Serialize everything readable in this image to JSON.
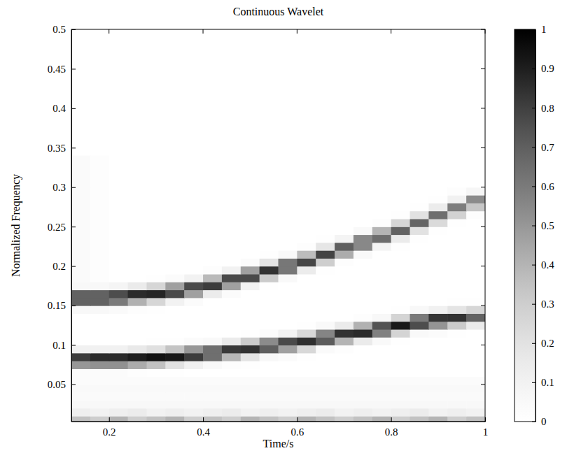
{
  "chart_data": {
    "type": "heatmap",
    "title": "Continuous Wavelet",
    "x_label": "Time/s",
    "y_label": "Normalized Frequency",
    "xlim": [
      0.12,
      1
    ],
    "ylim": [
      0.003,
      0.5
    ],
    "xticks": [
      0.2,
      0.4,
      0.6,
      0.8,
      1
    ],
    "yticks": [
      0.05,
      0.1,
      0.15,
      0.2,
      0.25,
      0.3,
      0.35,
      0.4,
      0.45,
      0.5
    ],
    "x": [
      0.14,
      0.18,
      0.22,
      0.26,
      0.3,
      0.34,
      0.38,
      0.42,
      0.46,
      0.5,
      0.54,
      0.58,
      0.62,
      0.66,
      0.7,
      0.74,
      0.78,
      0.82,
      0.86,
      0.9,
      0.94,
      0.98
    ],
    "y": [
      0.005,
      0.015,
      0.025,
      0.035,
      0.045,
      0.055,
      0.065,
      0.075,
      0.085,
      0.095,
      0.105,
      0.115,
      0.125,
      0.135,
      0.145,
      0.155,
      0.165,
      0.175,
      0.185,
      0.195,
      0.205,
      0.215,
      0.225,
      0.235,
      0.245,
      0.255,
      0.265,
      0.275,
      0.285,
      0.295,
      0.305,
      0.315,
      0.325,
      0.335
    ],
    "values": [
      [
        0.35,
        0.3,
        0.4,
        0.3,
        0.35,
        0.4,
        0.3,
        0.35,
        0.3,
        0.4,
        0.35,
        0.3,
        0.4,
        0.35,
        0.3,
        0.35,
        0.4,
        0.3,
        0.35,
        0.4,
        0.3,
        0.35
      ],
      [
        0.12,
        0.1,
        0.12,
        0.14,
        0.1,
        0.12,
        0.1,
        0.12,
        0.14,
        0.1,
        0.12,
        0.1,
        0.12,
        0.14,
        0.1,
        0.12,
        0.1,
        0.12,
        0.14,
        0.1,
        0.12,
        0.1
      ],
      [
        0.06,
        0.06,
        0.06,
        0.06,
        0.06,
        0.06,
        0.06,
        0.06,
        0.06,
        0.06,
        0.06,
        0.06,
        0.06,
        0.06,
        0.06,
        0.06,
        0.06,
        0.06,
        0.06,
        0.06,
        0.06,
        0.06
      ],
      [
        0.04,
        0.04,
        0.04,
        0.04,
        0.04,
        0.04,
        0.04,
        0.04,
        0.04,
        0.04,
        0.04,
        0.04,
        0.04,
        0.04,
        0.04,
        0.04,
        0.04,
        0.04,
        0.04,
        0.04,
        0.04,
        0.04
      ],
      [
        0.05,
        0.05,
        0.05,
        0.05,
        0.05,
        0.05,
        0.05,
        0.05,
        0.05,
        0.05,
        0.05,
        0.05,
        0.05,
        0.05,
        0.05,
        0.05,
        0.05,
        0.05,
        0.05,
        0.05,
        0.05,
        0.05
      ],
      [
        0.03,
        0.03,
        0.03,
        0.03,
        0.03,
        0.03,
        0.03,
        0.03,
        0.03,
        0.03,
        0.03,
        0.03,
        0.03,
        0.03,
        0.03,
        0.03,
        0.03,
        0.03,
        0.03,
        0.03,
        0.03,
        0.03
      ],
      [
        0.03,
        0.03,
        0.03,
        0.02,
        0.01,
        0.01,
        0,
        0,
        0,
        0,
        0,
        0,
        0,
        0,
        0,
        0,
        0,
        0,
        0,
        0,
        0,
        0
      ],
      [
        0.5,
        0.52,
        0.52,
        0.43,
        0.35,
        0.2,
        0.11,
        0.05,
        0.02,
        0.01,
        0,
        0,
        0,
        0,
        0,
        0,
        0,
        0,
        0,
        0,
        0,
        0
      ],
      [
        0.81,
        0.86,
        0.86,
        0.9,
        0.94,
        0.92,
        0.81,
        0.64,
        0.39,
        0.19,
        0.06,
        0.03,
        0.01,
        0,
        0,
        0,
        0,
        0,
        0,
        0,
        0,
        0
      ],
      [
        0.11,
        0.11,
        0.11,
        0.16,
        0.21,
        0.34,
        0.5,
        0.64,
        0.82,
        0.84,
        0.7,
        0.47,
        0.25,
        0.04,
        0.02,
        0,
        0,
        0,
        0,
        0,
        0,
        0
      ],
      [
        0,
        0,
        0,
        0,
        0.01,
        0.01,
        0.03,
        0.05,
        0.15,
        0.31,
        0.54,
        0.77,
        0.85,
        0.71,
        0.4,
        0.15,
        0.05,
        0.01,
        0,
        0,
        0,
        0
      ],
      [
        0,
        0,
        0,
        0,
        0,
        0,
        0,
        0,
        0,
        0.01,
        0.03,
        0.1,
        0.25,
        0.56,
        0.84,
        0.86,
        0.58,
        0.27,
        0.05,
        0.03,
        0.01,
        0
      ],
      [
        0,
        0,
        0,
        0,
        0,
        0,
        0,
        0,
        0,
        0,
        0,
        0,
        0.01,
        0.05,
        0.15,
        0.41,
        0.74,
        0.92,
        0.76,
        0.51,
        0.31,
        0.15
      ],
      [
        0,
        0,
        0,
        0,
        0,
        0,
        0,
        0,
        0,
        0,
        0,
        0,
        0,
        0,
        0,
        0.02,
        0.06,
        0.27,
        0.6,
        0.83,
        0.84,
        0.69
      ],
      [
        0.06,
        0.06,
        0.04,
        0.02,
        0.01,
        0,
        0,
        0,
        0,
        0,
        0,
        0,
        0,
        0,
        0,
        0,
        0,
        0.01,
        0.06,
        0.11,
        0.19,
        0.26
      ],
      [
        0.69,
        0.69,
        0.6,
        0.41,
        0.26,
        0.1,
        0.03,
        0,
        0,
        0,
        0,
        0,
        0,
        0,
        0,
        0,
        0,
        0,
        0,
        0,
        0.01,
        0.01
      ],
      [
        0.69,
        0.69,
        0.76,
        0.86,
        0.88,
        0.77,
        0.47,
        0.14,
        0.03,
        0,
        0,
        0,
        0,
        0,
        0,
        0,
        0,
        0,
        0,
        0,
        0,
        0
      ],
      [
        0.06,
        0.06,
        0.08,
        0.15,
        0.26,
        0.47,
        0.77,
        0.81,
        0.47,
        0.1,
        0.01,
        0,
        0,
        0,
        0,
        0,
        0,
        0,
        0,
        0,
        0,
        0
      ],
      [
        0.04,
        0.02,
        0,
        0,
        0.01,
        0.03,
        0.1,
        0.38,
        0.77,
        0.77,
        0.31,
        0.05,
        0,
        0,
        0,
        0,
        0,
        0,
        0,
        0,
        0,
        0
      ],
      [
        0.04,
        0.02,
        0,
        0,
        0,
        0,
        0,
        0.02,
        0.1,
        0.47,
        0.84,
        0.61,
        0.14,
        0.01,
        0,
        0,
        0,
        0,
        0,
        0,
        0,
        0
      ],
      [
        0.04,
        0.02,
        0,
        0,
        0,
        0,
        0,
        0,
        0,
        0.03,
        0.19,
        0.61,
        0.78,
        0.3,
        0.02,
        0,
        0,
        0,
        0,
        0,
        0,
        0
      ],
      [
        0.04,
        0.02,
        0,
        0,
        0,
        0,
        0,
        0,
        0,
        0,
        0.01,
        0.05,
        0.37,
        0.79,
        0.43,
        0.05,
        0,
        0,
        0,
        0,
        0,
        0
      ],
      [
        0.04,
        0.02,
        0,
        0,
        0,
        0,
        0,
        0,
        0,
        0,
        0,
        0,
        0.02,
        0.18,
        0.7,
        0.55,
        0.09,
        0.01,
        0,
        0,
        0,
        0
      ],
      [
        0.04,
        0.02,
        0,
        0,
        0,
        0,
        0,
        0,
        0,
        0,
        0,
        0,
        0,
        0.01,
        0.09,
        0.55,
        0.65,
        0.15,
        0.01,
        0,
        0,
        0
      ],
      [
        0.04,
        0.02,
        0,
        0,
        0,
        0,
        0,
        0,
        0,
        0,
        0,
        0,
        0,
        0,
        0,
        0.05,
        0.4,
        0.69,
        0.2,
        0.01,
        0,
        0
      ],
      [
        0.04,
        0.02,
        0,
        0,
        0,
        0,
        0,
        0,
        0,
        0,
        0,
        0,
        0,
        0,
        0,
        0,
        0.02,
        0.26,
        0.68,
        0.24,
        0.01,
        0
      ],
      [
        0.04,
        0.02,
        0,
        0,
        0,
        0,
        0,
        0,
        0,
        0,
        0,
        0,
        0,
        0,
        0,
        0,
        0,
        0.01,
        0.2,
        0.64,
        0.28,
        0.02
      ],
      [
        0.04,
        0.02,
        0,
        0,
        0,
        0,
        0,
        0,
        0,
        0,
        0,
        0,
        0,
        0,
        0,
        0,
        0,
        0,
        0.01,
        0.14,
        0.59,
        0.33
      ],
      [
        0.04,
        0.02,
        0,
        0,
        0,
        0,
        0,
        0,
        0,
        0,
        0,
        0,
        0,
        0,
        0,
        0,
        0,
        0,
        0,
        0.01,
        0.11,
        0.54
      ],
      [
        0.04,
        0.02,
        0,
        0,
        0,
        0,
        0,
        0,
        0,
        0,
        0,
        0,
        0,
        0,
        0,
        0,
        0,
        0,
        0,
        0,
        0.02,
        0.07
      ],
      [
        0.04,
        0.02,
        0,
        0,
        0,
        0,
        0,
        0,
        0,
        0,
        0,
        0,
        0,
        0,
        0,
        0,
        0,
        0,
        0,
        0,
        0,
        0
      ],
      [
        0.04,
        0.02,
        0,
        0,
        0,
        0,
        0,
        0,
        0,
        0,
        0,
        0,
        0,
        0,
        0,
        0,
        0,
        0,
        0,
        0,
        0,
        0
      ],
      [
        0.04,
        0.02,
        0,
        0,
        0,
        0,
        0,
        0,
        0,
        0,
        0,
        0,
        0,
        0,
        0,
        0,
        0,
        0,
        0,
        0,
        0,
        0
      ],
      [
        0.04,
        0.02,
        0,
        0,
        0,
        0,
        0,
        0,
        0,
        0,
        0,
        0,
        0,
        0,
        0,
        0,
        0,
        0,
        0,
        0,
        0,
        0
      ]
    ],
    "colorbar": {
      "range": [
        0,
        1
      ],
      "ticks": [
        0,
        0.1,
        0.2,
        0.3,
        0.4,
        0.5,
        0.6,
        0.7,
        0.8,
        0.9,
        1
      ]
    }
  }
}
